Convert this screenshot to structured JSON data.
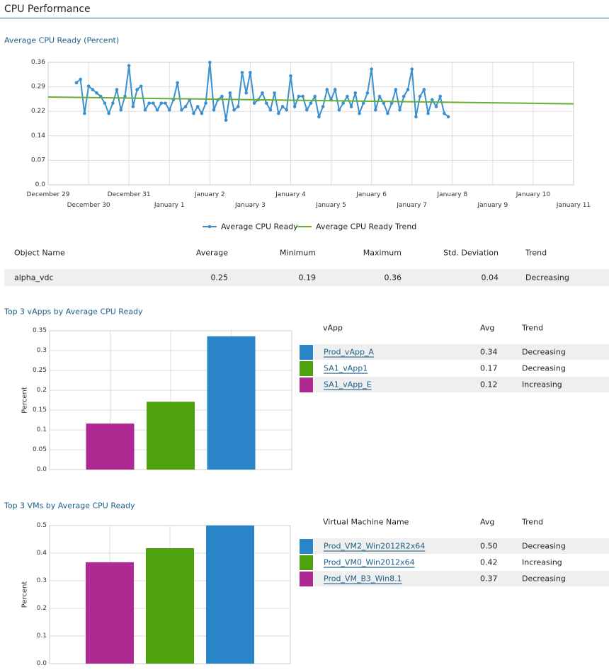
{
  "header": {
    "title": "CPU Performance"
  },
  "chart_data": [
    {
      "type": "line",
      "title": "Average CPU Ready (Percent)",
      "series": [
        {
          "name": "Average CPU Ready",
          "color": "#3a8fd1",
          "markers": true,
          "x": [
            0.7,
            0.8,
            0.9,
            1.0,
            1.1,
            1.2,
            1.3,
            1.4,
            1.5,
            1.6,
            1.7,
            1.8,
            1.9,
            2.0,
            2.1,
            2.2,
            2.3,
            2.4,
            2.5,
            2.6,
            2.7,
            2.8,
            2.9,
            3.0,
            3.1,
            3.2,
            3.3,
            3.4,
            3.5,
            3.6,
            3.7,
            3.8,
            3.9,
            4.0,
            4.1,
            4.2,
            4.3,
            4.4,
            4.5,
            4.6,
            4.7,
            4.8,
            4.9,
            5.0,
            5.1,
            5.2,
            5.3,
            5.4,
            5.5,
            5.6,
            5.7,
            5.8,
            5.9,
            6.0,
            6.1,
            6.2,
            6.3,
            6.4,
            6.5,
            6.6,
            6.7,
            6.8,
            6.9,
            7.0,
            7.1,
            7.2,
            7.3,
            7.4,
            7.5,
            7.6,
            7.7,
            7.8,
            7.9,
            8.0,
            8.1,
            8.2,
            8.3,
            8.4,
            8.5,
            8.6,
            8.7,
            8.8,
            8.9,
            9.0,
            9.1,
            9.2,
            9.3,
            9.4,
            9.5,
            9.6,
            9.7,
            9.8,
            9.9
          ],
          "values": [
            0.3,
            0.31,
            0.21,
            0.29,
            0.28,
            0.27,
            0.26,
            0.24,
            0.21,
            0.24,
            0.28,
            0.22,
            0.26,
            0.35,
            0.23,
            0.28,
            0.29,
            0.22,
            0.24,
            0.24,
            0.22,
            0.24,
            0.24,
            0.22,
            0.25,
            0.3,
            0.22,
            0.23,
            0.25,
            0.21,
            0.23,
            0.21,
            0.24,
            0.36,
            0.22,
            0.25,
            0.26,
            0.19,
            0.27,
            0.22,
            0.23,
            0.33,
            0.27,
            0.33,
            0.24,
            0.25,
            0.27,
            0.24,
            0.22,
            0.27,
            0.21,
            0.23,
            0.22,
            0.32,
            0.23,
            0.26,
            0.26,
            0.22,
            0.24,
            0.26,
            0.2,
            0.23,
            0.28,
            0.25,
            0.28,
            0.22,
            0.24,
            0.26,
            0.23,
            0.27,
            0.21,
            0.24,
            0.27,
            0.34,
            0.22,
            0.26,
            0.24,
            0.21,
            0.24,
            0.28,
            0.22,
            0.26,
            0.28,
            0.34,
            0.2,
            0.26,
            0.28,
            0.21,
            0.25,
            0.23,
            0.26,
            0.21,
            0.2
          ]
        },
        {
          "name": "Average CPU Ready Trend",
          "color": "#62b22f",
          "markers": false,
          "x": [
            0,
            13
          ],
          "values": [
            0.258,
            0.238
          ]
        }
      ],
      "xlim": [
        0,
        13
      ],
      "xticks": [
        {
          "value": 0,
          "label": "December 29"
        },
        {
          "value": 1,
          "label": "December 30"
        },
        {
          "value": 2,
          "label": "December 31"
        },
        {
          "value": 3,
          "label": "January 1"
        },
        {
          "value": 4,
          "label": "January 2"
        },
        {
          "value": 5,
          "label": "January 3"
        },
        {
          "value": 6,
          "label": "January 4"
        },
        {
          "value": 7,
          "label": "January 5"
        },
        {
          "value": 8,
          "label": "January 6"
        },
        {
          "value": 9,
          "label": "January 7"
        },
        {
          "value": 10,
          "label": "January 8"
        },
        {
          "value": 11,
          "label": "January 9"
        },
        {
          "value": 12,
          "label": "January 10"
        },
        {
          "value": 13,
          "label": "January 11"
        }
      ],
      "ylim": [
        0,
        0.36
      ],
      "yticks": [
        {
          "value": 0,
          "label": "0.0"
        },
        {
          "value": 0.072,
          "label": "0.07"
        },
        {
          "value": 0.144,
          "label": "0.14"
        },
        {
          "value": 0.216,
          "label": "0.22"
        },
        {
          "value": 0.288,
          "label": "0.29"
        },
        0.36
      ],
      "grid": true,
      "legend": "bottom"
    },
    {
      "type": "bar",
      "title": "Top 3 vApps by Average CPU Ready",
      "y_label": "Percent",
      "values": [
        0.116,
        0.171,
        0.336
      ],
      "colors": [
        "#ae2a92",
        "#4ea20e",
        "#2a84c8"
      ],
      "ylim": [
        0,
        0.35
      ],
      "yticks": [
        {
          "value": 0,
          "label": "0.0"
        },
        0.05,
        0.1,
        0.15,
        0.2,
        0.25,
        0.3,
        0.35
      ],
      "grid": true
    },
    {
      "type": "bar",
      "title": "Top 3 VMs by Average CPU Ready",
      "y_label": "Percent",
      "values": [
        0.367,
        0.418,
        0.5
      ],
      "colors": [
        "#ae2a92",
        "#4ea20e",
        "#2a84c8"
      ],
      "ylim": [
        0,
        0.5
      ],
      "yticks": [
        {
          "value": 0,
          "label": "0.0"
        },
        0.1,
        0.2,
        0.3,
        0.4,
        0.5
      ],
      "grid": true
    }
  ],
  "summary_table": {
    "columns": [
      "Object Name",
      "Average",
      "Minimum",
      "Maximum",
      "Std. Deviation",
      "Trend"
    ],
    "rows": [
      [
        "alpha_vdc",
        "0.25",
        "0.19",
        "0.36",
        "0.04",
        "Decreasing"
      ]
    ]
  },
  "vapp_table": {
    "columns": [
      "vApp",
      "Avg",
      "Trend"
    ],
    "rows": [
      {
        "color": "#2a84c8",
        "name": "Prod_vApp_A",
        "avg": "0.34",
        "trend": "Decreasing"
      },
      {
        "color": "#4ea20e",
        "name": "SA1_vApp1",
        "avg": "0.17",
        "trend": "Decreasing"
      },
      {
        "color": "#ae2a92",
        "name": "SA1_vApp_E",
        "avg": "0.12",
        "trend": "Increasing"
      }
    ]
  },
  "vm_table": {
    "columns": [
      "Virtual Machine Name",
      "Avg",
      "Trend"
    ],
    "rows": [
      {
        "color": "#2a84c8",
        "name": "Prod_VM2_Win2012R2x64",
        "avg": "0.50",
        "trend": "Decreasing"
      },
      {
        "color": "#4ea20e",
        "name": "Prod_VM0_Win2012x64",
        "avg": "0.42",
        "trend": "Increasing"
      },
      {
        "color": "#ae2a92",
        "name": "Prod_VM_B3_Win8.1",
        "avg": "0.37",
        "trend": "Decreasing"
      }
    ]
  }
}
